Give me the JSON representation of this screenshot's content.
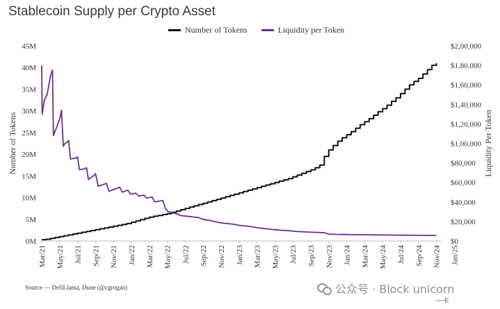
{
  "chart_data": {
    "type": "line",
    "title": "Stablecoin Supply per Crypto Asset",
    "ylabel": "Number of Tokens",
    "y2label": "Liquidity Per Token",
    "ylim": [
      0,
      45000000
    ],
    "y2lim": [
      0,
      200000
    ],
    "y_ticks": [
      "0M",
      "5M",
      "10M",
      "15M",
      "20M",
      "25M",
      "30M",
      "35M",
      "40M",
      "45M"
    ],
    "y2_ticks": [
      "$0",
      "$20,000",
      "$40,000",
      "$60,000",
      "$80,000",
      "$1,00,000",
      "$1,20,000",
      "$1,40,000",
      "$1,60,000",
      "$1,80,000",
      "$2,00,000"
    ],
    "x_ticks": [
      "Mar/21",
      "May/21",
      "Jul/21",
      "Sep/21",
      "Nov/21",
      "Jan/22",
      "Mar/22",
      "May/22",
      "Jul/22",
      "Sep/22",
      "Nov/22",
      "Jan/23",
      "Mar/23",
      "May/23",
      "Jul/23",
      "Sep/23",
      "Nov/23",
      "Jan/24",
      "Mar/24",
      "May/24",
      "Jul/24",
      "Sep/24",
      "Nov/24",
      "Jan/25"
    ],
    "grid": false,
    "legend_position": "top",
    "series": [
      {
        "name": "Number of Tokens",
        "color": "#111111",
        "axis": "left",
        "step": true,
        "points": [
          [
            0,
            0.3
          ],
          [
            0.5,
            0.4
          ],
          [
            1,
            0.6
          ],
          [
            1.5,
            0.8
          ],
          [
            2,
            1.0
          ],
          [
            2.5,
            1.2
          ],
          [
            3,
            1.4
          ],
          [
            3.5,
            1.6
          ],
          [
            4,
            1.8
          ],
          [
            4.5,
            2.0
          ],
          [
            5,
            2.2
          ],
          [
            5.5,
            2.4
          ],
          [
            6,
            2.6
          ],
          [
            6.5,
            2.8
          ],
          [
            7,
            3.0
          ],
          [
            7.5,
            3.2
          ],
          [
            8,
            3.4
          ],
          [
            8.5,
            3.6
          ],
          [
            9,
            3.8
          ],
          [
            9.5,
            4.0
          ],
          [
            10,
            4.3
          ],
          [
            10.5,
            4.6
          ],
          [
            11,
            4.9
          ],
          [
            11.5,
            5.2
          ],
          [
            12,
            5.5
          ],
          [
            12.5,
            5.7
          ],
          [
            13,
            5.9
          ],
          [
            13.5,
            6.1
          ],
          [
            14,
            6.3
          ],
          [
            14.5,
            6.6
          ],
          [
            15,
            6.9
          ],
          [
            15.5,
            7.2
          ],
          [
            16,
            7.5
          ],
          [
            16.5,
            7.8
          ],
          [
            17,
            8.1
          ],
          [
            17.5,
            8.4
          ],
          [
            18,
            8.7
          ],
          [
            18.5,
            9.0
          ],
          [
            19,
            9.3
          ],
          [
            19.5,
            9.6
          ],
          [
            20,
            9.9
          ],
          [
            20.5,
            10.2
          ],
          [
            21,
            10.5
          ],
          [
            21.5,
            10.8
          ],
          [
            22,
            11.1
          ],
          [
            22.5,
            11.4
          ],
          [
            23,
            11.7
          ],
          [
            23.5,
            12.0
          ],
          [
            24,
            12.3
          ],
          [
            24.5,
            12.6
          ],
          [
            25,
            12.9
          ],
          [
            25.5,
            13.2
          ],
          [
            26,
            13.5
          ],
          [
            26.5,
            13.8
          ],
          [
            27,
            14.1
          ],
          [
            27.5,
            14.4
          ],
          [
            28,
            14.8
          ],
          [
            28.5,
            15.2
          ],
          [
            29,
            15.6
          ],
          [
            29.5,
            16.0
          ],
          [
            30,
            16.4
          ],
          [
            30.5,
            16.9
          ],
          [
            31,
            17.5
          ],
          [
            31.5,
            19.5
          ],
          [
            32,
            21.0
          ],
          [
            32.5,
            22.0
          ],
          [
            33,
            23.0
          ],
          [
            33.5,
            23.8
          ],
          [
            34,
            24.5
          ],
          [
            34.5,
            25.2
          ],
          [
            35,
            26.0
          ],
          [
            35.5,
            26.8
          ],
          [
            36,
            27.5
          ],
          [
            36.5,
            28.2
          ],
          [
            37,
            29.0
          ],
          [
            37.5,
            29.8
          ],
          [
            38,
            30.5
          ],
          [
            38.5,
            31.3
          ],
          [
            39,
            32.2
          ],
          [
            39.5,
            33.0
          ],
          [
            40,
            34.0
          ],
          [
            40.5,
            35.0
          ],
          [
            41,
            36.0
          ],
          [
            41.5,
            36.8
          ],
          [
            42,
            37.5
          ],
          [
            42.5,
            38.5
          ],
          [
            43,
            39.5
          ],
          [
            43.5,
            40.5
          ],
          [
            44,
            41.0
          ]
        ]
      },
      {
        "name": "Liquidity per Token",
        "color": "#6b2f8f",
        "axis": "right",
        "step": false,
        "points": [
          [
            0,
            180000
          ],
          [
            0.05,
            130000
          ],
          [
            0.3,
            145000
          ],
          [
            0.6,
            150000
          ],
          [
            0.8,
            160000
          ],
          [
            1.0,
            170000
          ],
          [
            1.2,
            175000
          ],
          [
            1.3,
            108000
          ],
          [
            1.6,
            115000
          ],
          [
            1.8,
            120000
          ],
          [
            2.0,
            125000
          ],
          [
            2.2,
            134000
          ],
          [
            2.4,
            97000
          ],
          [
            2.6,
            100000
          ],
          [
            2.8,
            101000
          ],
          [
            3.0,
            103000
          ],
          [
            3.2,
            84000
          ],
          [
            3.5,
            84500
          ],
          [
            3.8,
            85000
          ],
          [
            4.0,
            86000
          ],
          [
            4.2,
            73000
          ],
          [
            4.5,
            73500
          ],
          [
            4.8,
            74000
          ],
          [
            5.0,
            75000
          ],
          [
            5.2,
            63000
          ],
          [
            5.5,
            65000
          ],
          [
            5.8,
            67000
          ],
          [
            6.0,
            69000
          ],
          [
            6.3,
            56000
          ],
          [
            6.6,
            57000
          ],
          [
            6.9,
            58000
          ],
          [
            7.2,
            59000
          ],
          [
            7.5,
            51000
          ],
          [
            7.8,
            52000
          ],
          [
            8.1,
            53000
          ],
          [
            8.4,
            54000
          ],
          [
            8.7,
            55000
          ],
          [
            9.0,
            50000
          ],
          [
            9.3,
            51000
          ],
          [
            9.6,
            52000
          ],
          [
            9.9,
            48000
          ],
          [
            10.2,
            48500
          ],
          [
            10.5,
            49000
          ],
          [
            10.8,
            46000
          ],
          [
            11.1,
            46500
          ],
          [
            11.4,
            47000
          ],
          [
            11.7,
            44000
          ],
          [
            12.0,
            44500
          ],
          [
            12.3,
            45000
          ],
          [
            12.6,
            40000
          ],
          [
            12.9,
            40500
          ],
          [
            13.2,
            41000
          ],
          [
            13.5,
            41500
          ],
          [
            13.8,
            33000
          ],
          [
            14.1,
            30000
          ],
          [
            14.5,
            29000
          ],
          [
            15.0,
            28000
          ],
          [
            15.5,
            26000
          ],
          [
            16.0,
            25500
          ],
          [
            16.5,
            25000
          ],
          [
            17.0,
            24500
          ],
          [
            17.5,
            24000
          ],
          [
            18.0,
            22000
          ],
          [
            18.5,
            21500
          ],
          [
            19.0,
            20500
          ],
          [
            19.5,
            19500
          ],
          [
            20.0,
            18500
          ],
          [
            20.5,
            18000
          ],
          [
            21.0,
            17500
          ],
          [
            21.5,
            17000
          ],
          [
            22.0,
            16000
          ],
          [
            22.5,
            15500
          ],
          [
            23.0,
            15000
          ],
          [
            23.5,
            14500
          ],
          [
            24.0,
            13500
          ],
          [
            24.5,
            13000
          ],
          [
            25.0,
            12500
          ],
          [
            25.5,
            12000
          ],
          [
            26.0,
            11500
          ],
          [
            26.5,
            11000
          ],
          [
            27.0,
            10800
          ],
          [
            27.5,
            10500
          ],
          [
            28.0,
            10000
          ],
          [
            28.5,
            9700
          ],
          [
            29.0,
            9500
          ],
          [
            29.5,
            9200
          ],
          [
            30.0,
            9000
          ],
          [
            30.5,
            8800
          ],
          [
            31.0,
            8700
          ],
          [
            31.5,
            8500
          ],
          [
            32.0,
            7000
          ],
          [
            32.5,
            6800
          ],
          [
            33.0,
            6700
          ],
          [
            33.5,
            6600
          ],
          [
            34.0,
            6600
          ],
          [
            34.5,
            6500
          ],
          [
            35.0,
            6400
          ],
          [
            35.5,
            6400
          ],
          [
            36.0,
            6300
          ],
          [
            36.5,
            6300
          ],
          [
            37.0,
            6200
          ],
          [
            37.5,
            6200
          ],
          [
            38.0,
            6100
          ],
          [
            38.5,
            6100
          ],
          [
            39.0,
            6000
          ],
          [
            39.5,
            6000
          ],
          [
            40.0,
            5900
          ],
          [
            40.5,
            5900
          ],
          [
            41.0,
            5800
          ],
          [
            41.5,
            5800
          ],
          [
            42.0,
            5800
          ],
          [
            42.5,
            5700
          ],
          [
            43.0,
            5700
          ],
          [
            43.5,
            5700
          ],
          [
            44.0,
            5600
          ]
        ]
      }
    ]
  },
  "source": "Source — DefiLlama, Dune (@cgrogan)",
  "watermark": {
    "text": "公众号 · Block unicorn",
    "brand": "一卡"
  }
}
